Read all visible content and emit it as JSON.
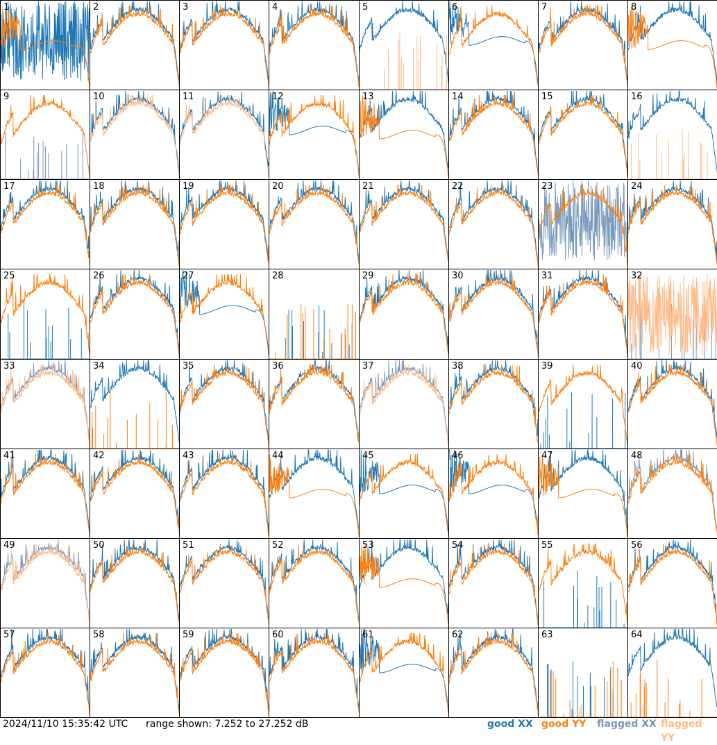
{
  "footer": {
    "timestamp": "2024/11/10 15:35:42 UTC",
    "range_label": "range shown: 7.252 to 27.252 dB"
  },
  "legend": [
    {
      "word": "good",
      "pol": "XX",
      "color": "#1f77b4"
    },
    {
      "word": "good",
      "pol": "YY",
      "color": "#ff7f0e"
    },
    {
      "word": "flagged",
      "pol": "XX",
      "color": "#7799bb"
    },
    {
      "word": "flagged",
      "pol": "YY",
      "color": "#ffbb88"
    }
  ],
  "colors": {
    "good_xx": "#1f77b4",
    "good_yy": "#ff7f0e",
    "flagged_xx": "#7799bb",
    "flagged_yy": "#ffbb88"
  },
  "chart_data": {
    "type": "line",
    "layout": "8x8 small multiples",
    "ylim": [
      7.252,
      27.252
    ],
    "yunit": "dB",
    "panels": [
      {
        "n": 1,
        "xx": "noisy",
        "yy": "drop",
        "xf": 0,
        "yf": 0
      },
      {
        "n": 2,
        "xx": "normal",
        "yy": "normal",
        "xf": 0,
        "yf": 0
      },
      {
        "n": 3,
        "xx": "normal",
        "yy": "normal",
        "xf": 0,
        "yf": 0
      },
      {
        "n": 4,
        "xx": "normal",
        "yy": "normal",
        "xf": 0,
        "yf": 0
      },
      {
        "n": 5,
        "xx": "normal",
        "yy": "spikes",
        "xf": 0,
        "yf": 1
      },
      {
        "n": 6,
        "xx": "drop",
        "yy": "normal",
        "xf": 0,
        "yf": 0
      },
      {
        "n": 7,
        "xx": "normal",
        "yy": "normal",
        "xf": 0,
        "yf": 0
      },
      {
        "n": 8,
        "xx": "normal",
        "yy": "drop",
        "xf": 0,
        "yf": 0
      },
      {
        "n": 9,
        "xx": "spikes",
        "yy": "normal",
        "xf": 1,
        "yf": 0
      },
      {
        "n": 10,
        "xx": "normal",
        "yy": "normal",
        "xf": 0,
        "yf": 1
      },
      {
        "n": 11,
        "xx": "normal",
        "yy": "normal",
        "xf": 0,
        "yf": 1
      },
      {
        "n": 12,
        "xx": "drop",
        "yy": "normal",
        "xf": 0,
        "yf": 0
      },
      {
        "n": 13,
        "xx": "normal",
        "yy": "drop",
        "xf": 0,
        "yf": 0
      },
      {
        "n": 14,
        "xx": "normal",
        "yy": "normal",
        "xf": 0,
        "yf": 0
      },
      {
        "n": 15,
        "xx": "normal",
        "yy": "normal",
        "xf": 0,
        "yf": 0
      },
      {
        "n": 16,
        "xx": "normal",
        "yy": "spikes",
        "xf": 0,
        "yf": 1
      },
      {
        "n": 17,
        "xx": "normal",
        "yy": "normal",
        "xf": 0,
        "yf": 0
      },
      {
        "n": 18,
        "xx": "normal",
        "yy": "normal",
        "xf": 0,
        "yf": 0
      },
      {
        "n": 19,
        "xx": "normal",
        "yy": "normal",
        "xf": 0,
        "yf": 0
      },
      {
        "n": 20,
        "xx": "normal",
        "yy": "normal",
        "xf": 0,
        "yf": 0
      },
      {
        "n": 21,
        "xx": "normal",
        "yy": "normal",
        "xf": 0,
        "yf": 0
      },
      {
        "n": 22,
        "xx": "normal",
        "yy": "normal",
        "xf": 0,
        "yf": 0
      },
      {
        "n": 23,
        "xx": "noisy",
        "yy": "normal",
        "xf": 1,
        "yf": 0
      },
      {
        "n": 24,
        "xx": "normal",
        "yy": "normal",
        "xf": 0,
        "yf": 0
      },
      {
        "n": 25,
        "xx": "spikes",
        "yy": "normal",
        "xf": 0,
        "yf": 0
      },
      {
        "n": 26,
        "xx": "normal",
        "yy": "normal",
        "xf": 0,
        "yf": 0
      },
      {
        "n": 27,
        "xx": "drop",
        "yy": "normal",
        "xf": 0,
        "yf": 0
      },
      {
        "n": 28,
        "xx": "spikes",
        "yy": "spikes",
        "xf": 0,
        "yf": 0
      },
      {
        "n": 29,
        "xx": "normal",
        "yy": "normal",
        "xf": 0,
        "yf": 0
      },
      {
        "n": 30,
        "xx": "normal",
        "yy": "normal",
        "xf": 0,
        "yf": 0
      },
      {
        "n": 31,
        "xx": "normal",
        "yy": "normal",
        "xf": 0,
        "yf": 0
      },
      {
        "n": 32,
        "xx": "spikes",
        "yy": "noisy",
        "xf": 1,
        "yf": 1
      },
      {
        "n": 33,
        "xx": "normal",
        "yy": "normal",
        "xf": 1,
        "yf": 1
      },
      {
        "n": 34,
        "xx": "normal",
        "yy": "spikes",
        "xf": 0,
        "yf": 0
      },
      {
        "n": 35,
        "xx": "normal",
        "yy": "normal",
        "xf": 0,
        "yf": 0
      },
      {
        "n": 36,
        "xx": "normal",
        "yy": "normal",
        "xf": 0,
        "yf": 0
      },
      {
        "n": 37,
        "xx": "normal",
        "yy": "normal",
        "xf": 1,
        "yf": 1
      },
      {
        "n": 38,
        "xx": "normal",
        "yy": "normal",
        "xf": 0,
        "yf": 0
      },
      {
        "n": 39,
        "xx": "spikes",
        "yy": "normal",
        "xf": 0,
        "yf": 0
      },
      {
        "n": 40,
        "xx": "normal",
        "yy": "normal",
        "xf": 0,
        "yf": 0
      },
      {
        "n": 41,
        "xx": "normal",
        "yy": "normal",
        "xf": 0,
        "yf": 0
      },
      {
        "n": 42,
        "xx": "normal",
        "yy": "normal",
        "xf": 0,
        "yf": 0
      },
      {
        "n": 43,
        "xx": "normal",
        "yy": "normal",
        "xf": 0,
        "yf": 0
      },
      {
        "n": 44,
        "xx": "normal",
        "yy": "drop",
        "xf": 0,
        "yf": 0
      },
      {
        "n": 45,
        "xx": "drop",
        "yy": "normal",
        "xf": 0,
        "yf": 0
      },
      {
        "n": 46,
        "xx": "drop",
        "yy": "normal",
        "xf": 0,
        "yf": 0
      },
      {
        "n": 47,
        "xx": "normal",
        "yy": "drop",
        "xf": 0,
        "yf": 0
      },
      {
        "n": 48,
        "xx": "normal",
        "yy": "normal",
        "xf": 1,
        "yf": 0
      },
      {
        "n": 49,
        "xx": "normal",
        "yy": "normal",
        "xf": 1,
        "yf": 1
      },
      {
        "n": 50,
        "xx": "normal",
        "yy": "normal",
        "xf": 0,
        "yf": 0
      },
      {
        "n": 51,
        "xx": "normal",
        "yy": "normal",
        "xf": 0,
        "yf": 0
      },
      {
        "n": 52,
        "xx": "normal",
        "yy": "normal",
        "xf": 0,
        "yf": 0
      },
      {
        "n": 53,
        "xx": "normal",
        "yy": "drop",
        "xf": 0,
        "yf": 0
      },
      {
        "n": 54,
        "xx": "normal",
        "yy": "normal",
        "xf": 0,
        "yf": 0
      },
      {
        "n": 55,
        "xx": "spikes",
        "yy": "normal",
        "xf": 0,
        "yf": 0
      },
      {
        "n": 56,
        "xx": "normal",
        "yy": "normal",
        "xf": 0,
        "yf": 0
      },
      {
        "n": 57,
        "xx": "normal",
        "yy": "normal",
        "xf": 0,
        "yf": 0
      },
      {
        "n": 58,
        "xx": "normal",
        "yy": "normal",
        "xf": 0,
        "yf": 0
      },
      {
        "n": 59,
        "xx": "normal",
        "yy": "normal",
        "xf": 0,
        "yf": 0
      },
      {
        "n": 60,
        "xx": "normal",
        "yy": "normal",
        "xf": 0,
        "yf": 0
      },
      {
        "n": 61,
        "xx": "drop",
        "yy": "normal",
        "xf": 0,
        "yf": 0
      },
      {
        "n": 62,
        "xx": "normal",
        "yy": "normal",
        "xf": 0,
        "yf": 0
      },
      {
        "n": 63,
        "xx": "spikes",
        "yy": "spikes",
        "xf": 0,
        "yf": 0
      },
      {
        "n": 64,
        "xx": "normal",
        "yy": "spikes",
        "xf": 0,
        "yf": 0
      }
    ]
  }
}
